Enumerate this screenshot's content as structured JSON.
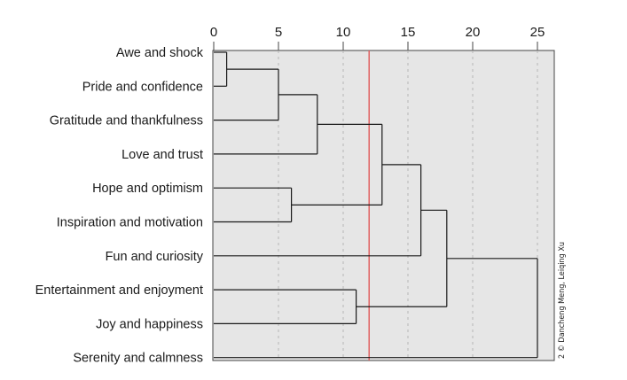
{
  "chart_data": {
    "type": "dendrogram",
    "title": "",
    "xlabel": "",
    "ylabel": "",
    "xlim": [
      0,
      26
    ],
    "x_ticks": [
      0,
      5,
      10,
      15,
      20,
      25
    ],
    "x_tick_labels": [
      "0",
      "5",
      "10",
      "15",
      "20",
      "25"
    ],
    "leaves": [
      "Awe and shock",
      "Pride and confidence",
      "Gratitude and thankfulness",
      "Love and trust",
      "Hope and optimism",
      "Inspiration and motivation",
      "Fun and curiosity",
      "Entertainment and enjoyment",
      "Joy and happiness",
      "Serenity and calmness"
    ],
    "merges": [
      {
        "id": "n10",
        "left": 0,
        "right": 1,
        "height": 1
      },
      {
        "id": "n11",
        "left": "n10",
        "right": 2,
        "height": 5
      },
      {
        "id": "n12",
        "left": "n11",
        "right": 3,
        "height": 8
      },
      {
        "id": "n13",
        "left": 4,
        "right": 5,
        "height": 6
      },
      {
        "id": "n14",
        "left": "n12",
        "right": "n13",
        "height": 13
      },
      {
        "id": "n15",
        "left": "n14",
        "right": 6,
        "height": 16
      },
      {
        "id": "n16",
        "left": 7,
        "right": 8,
        "height": 11
      },
      {
        "id": "n17",
        "left": "n15",
        "right": "n16",
        "height": 18
      },
      {
        "id": "n18",
        "left": "n17",
        "right": 9,
        "height": 25
      }
    ],
    "cut_line": {
      "value": 12,
      "color": "#e05a5a"
    },
    "grid": true,
    "colors": {
      "plot_background": "#e6e6e6",
      "lines": "#1a1a1a",
      "grid": "#b5b5b5"
    }
  },
  "credit": "© Dancheng Meng, Leiqing Xu",
  "credit_prefix": "2"
}
